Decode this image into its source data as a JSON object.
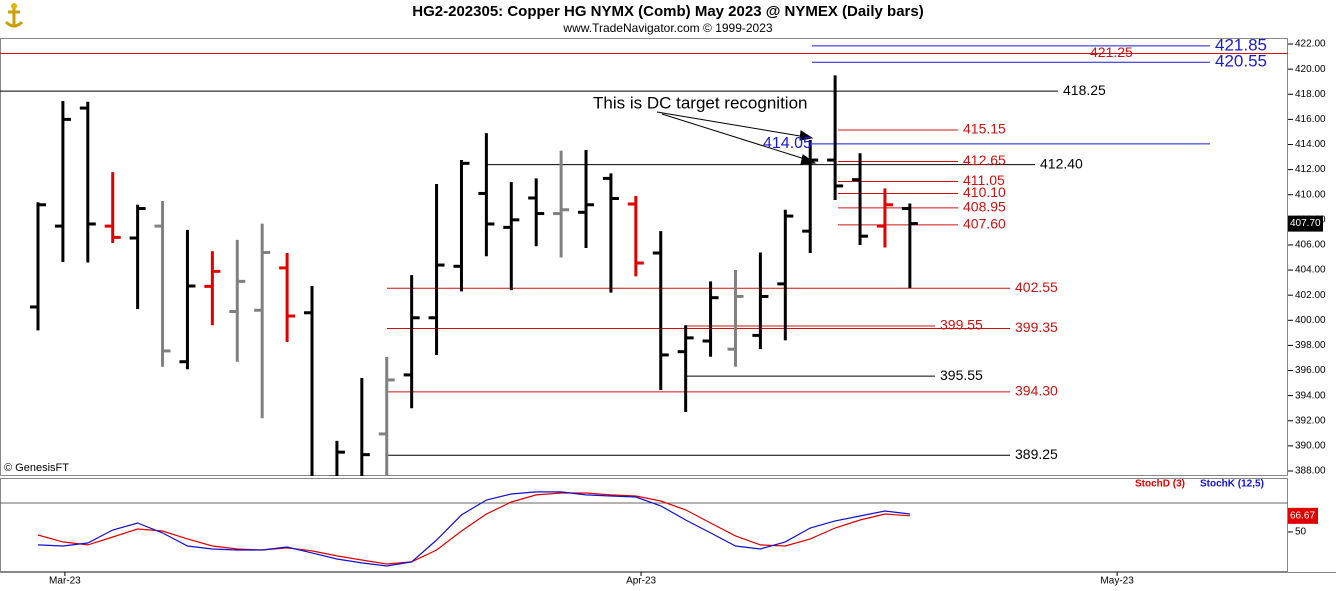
{
  "chart_data": [
    {
      "type": "ohlc",
      "title": "HG2-202305:  Copper HG NYMX (Comb) May 2023 @ NYMEX  (Daily bars)",
      "subtitle": "www.TradeNavigator.com © 1999-2023",
      "watermark": "© GenesisFT",
      "annotation": "This is DC target recognition",
      "x": [
        0,
        1,
        2,
        3,
        4,
        5,
        6,
        7,
        8,
        9,
        10,
        11,
        12,
        13,
        14,
        15,
        16,
        17,
        18,
        19,
        20,
        21,
        22,
        23,
        24,
        25,
        26,
        27,
        28,
        29,
        30,
        31,
        32,
        33,
        34,
        35
      ],
      "open": [
        401.06,
        407.5,
        416.9,
        407.5,
        406.55,
        407.5,
        396.7,
        402.7,
        400.7,
        400.8,
        404.17,
        400.6,
        387.5,
        386.5,
        390.95,
        395.65,
        400.2,
        404.3,
        410.1,
        407.4,
        409.74,
        408.5,
        408.6,
        411.3,
        409.26,
        405.36,
        397.5,
        398.35,
        397.7,
        398.8,
        402.9,
        407.1,
        412.76,
        411.2,
        407.5,
        408.9
      ],
      "high": [
        409.4,
        417.46,
        417.4,
        411.8,
        409.2,
        409.5,
        407.2,
        405.5,
        406.4,
        407.7,
        405.36,
        402.73,
        390.4,
        395.4,
        397.08,
        403.6,
        410.85,
        412.76,
        414.9,
        411.0,
        411.3,
        413.5,
        413.56,
        411.7,
        409.9,
        407.1,
        399.6,
        403.1,
        404.0,
        405.4,
        408.8,
        414.36,
        419.5,
        413.3,
        410.5,
        409.3
      ],
      "low": [
        399.2,
        404.64,
        404.6,
        406.15,
        400.9,
        396.3,
        396.1,
        399.6,
        396.7,
        392.2,
        398.27,
        386.5,
        386.0,
        385.5,
        386.0,
        393.0,
        397.24,
        402.3,
        405.1,
        402.4,
        405.9,
        405.0,
        405.76,
        402.2,
        403.5,
        394.45,
        392.7,
        397.1,
        396.3,
        397.7,
        398.4,
        405.36,
        409.58,
        406.0,
        405.8,
        402.57
      ],
      "close": [
        409.2,
        416.0,
        407.67,
        406.6,
        408.9,
        397.56,
        402.73,
        403.9,
        403.1,
        405.4,
        400.34,
        387.0,
        389.5,
        389.3,
        395.25,
        400.2,
        404.4,
        412.5,
        407.67,
        408.0,
        408.5,
        408.8,
        409.2,
        409.7,
        404.56,
        397.24,
        398.6,
        401.8,
        401.9,
        401.9,
        408.3,
        412.76,
        410.7,
        406.7,
        409.2,
        407.7
      ],
      "colors": [
        "#000000",
        "#000000",
        "#000000",
        "#e00000",
        "#000000",
        "#808080",
        "#000000",
        "#e00000",
        "#808080",
        "#808080",
        "#e00000",
        "#000000",
        "#000000",
        "#000000",
        "#808080",
        "#000000",
        "#000000",
        "#000000",
        "#000000",
        "#000000",
        "#000000",
        "#808080",
        "#000000",
        "#000000",
        "#e00000",
        "#000000",
        "#000000",
        "#000000",
        "#808080",
        "#000000",
        "#000000",
        "#000000",
        "#000000",
        "#000000",
        "#e00000",
        "#000000"
      ],
      "last_label": "407.70",
      "xlim": [
        -1.525,
        50.18
      ],
      "xticks": [
        {
          "value": 1.08,
          "label": "Mar-23"
        },
        {
          "value": 24.21,
          "label": "Apr-23"
        },
        {
          "value": 43.32,
          "label": "May-23"
        }
      ],
      "ylim": [
        387.6,
        422.48
      ],
      "yticks": [
        {
          "value": 388,
          "label": "388.00"
        },
        {
          "value": 390,
          "label": "390.00"
        },
        {
          "value": 392,
          "label": "392.00"
        },
        {
          "value": 394,
          "label": "394.00"
        },
        {
          "value": 396,
          "label": "396.00"
        },
        {
          "value": 398,
          "label": "398.00"
        },
        {
          "value": 400,
          "label": "400.00"
        },
        {
          "value": 402,
          "label": "402.00"
        },
        {
          "value": 404,
          "label": "404.00"
        },
        {
          "value": 406,
          "label": "406.00"
        },
        {
          "value": 408,
          "label": "408.00"
        },
        {
          "value": 410,
          "label": "410.00"
        },
        {
          "value": 412,
          "label": "412.00"
        },
        {
          "value": 414,
          "label": "414.00"
        },
        {
          "value": 416,
          "label": "416.00"
        },
        {
          "value": 418,
          "label": "418.00"
        },
        {
          "value": 420,
          "label": "420.00"
        },
        {
          "value": 422,
          "label": "422.00"
        }
      ],
      "levels": [
        {
          "value": 421.85,
          "color": "#1a1ad0"
        },
        {
          "value": 421.25,
          "color": "#d01010"
        },
        {
          "value": 420.55,
          "color": "#1a1ad0"
        },
        {
          "value": 418.25,
          "color": "#000000"
        },
        {
          "value": 415.15,
          "color": "#d01010"
        },
        {
          "value": 414.05,
          "color": "#1a1ad0"
        },
        {
          "value": 412.65,
          "color": "#d01010"
        },
        {
          "value": 412.4,
          "label": "412.40",
          "color": "#000000"
        },
        {
          "value": 411.05,
          "color": "#d01010"
        },
        {
          "value": 410.1,
          "label": "410.10",
          "color": "#d01010"
        },
        {
          "value": 408.95,
          "color": "#d01010"
        },
        {
          "value": 407.6,
          "label": "407.60",
          "color": "#d01010"
        },
        {
          "value": 402.55,
          "color": "#d01010"
        },
        {
          "value": 399.55,
          "color": "#d01010"
        },
        {
          "value": 399.35,
          "color": "#d01010"
        },
        {
          "value": 395.55,
          "color": "#000000"
        },
        {
          "value": 394.3,
          "label": "394.30",
          "color": "#d01010"
        },
        {
          "value": 389.25,
          "color": "#000000"
        }
      ]
    },
    {
      "type": "line",
      "x": [
        0,
        1,
        2,
        3,
        4,
        5,
        6,
        7,
        8,
        9,
        10,
        11,
        12,
        13,
        14,
        15,
        16,
        17,
        18,
        19,
        20,
        21,
        22,
        23,
        24,
        25,
        26,
        27,
        28,
        29,
        30,
        31,
        32,
        33,
        34,
        35
      ],
      "series": [
        {
          "name": "StochD (3)",
          "color": "#e00000",
          "values": [
            46.9,
            39.7,
            36.6,
            44.8,
            53.1,
            51,
            42.8,
            35.5,
            32.4,
            31.4,
            33.5,
            30.4,
            25.2,
            21,
            16.9,
            19,
            31.4,
            51,
            68.6,
            81,
            88.3,
            90.3,
            90.3,
            88.3,
            87.2,
            82,
            72.8,
            59.3,
            45.9,
            36.6,
            35.5,
            42.8,
            54.1,
            62.4,
            68.6,
            66.67
          ]
        },
        {
          "name": "StochK (12,5)",
          "color": "#1010d0",
          "values": [
            36.6,
            35.5,
            38.6,
            52,
            59.3,
            49,
            35.5,
            32.4,
            31.4,
            31.4,
            34.5,
            28.3,
            22,
            18,
            14.8,
            19,
            41.7,
            67.6,
            83,
            89.3,
            91.4,
            91.4,
            88.3,
            87.2,
            86.2,
            76.9,
            62.4,
            49,
            35.5,
            32.4,
            39.7,
            54.1,
            61.4,
            66.5,
            71.7,
            68.6
          ]
        }
      ],
      "ylim": [
        8.6,
        105.8
      ],
      "yticks": [
        50
      ]
    }
  ]
}
